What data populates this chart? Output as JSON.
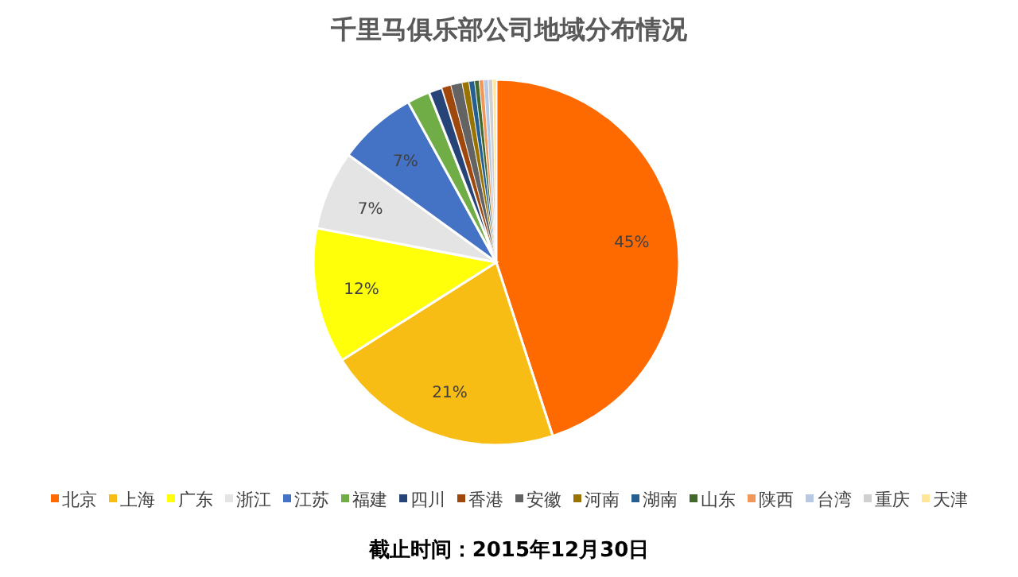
{
  "chart_data": {
    "type": "pie",
    "title": "千里马俱乐部公司地域分布情况",
    "categories": [
      "北京",
      "上海",
      "广东",
      "浙江",
      "江苏",
      "福建",
      "四川",
      "香港",
      "安徽",
      "河南",
      "湖南",
      "山东",
      "陕西",
      "台湾",
      "重庆",
      "天津"
    ],
    "values": [
      45,
      21,
      12,
      7,
      7,
      2,
      1.2,
      0.8,
      1,
      0.6,
      0.5,
      0.4,
      0.4,
      0.4,
      0.4,
      0.3
    ],
    "colors": [
      "#fe6a00",
      "#f8bd14",
      "#ffff0a",
      "#e4e4e4",
      "#4472c4",
      "#70ad47",
      "#264478",
      "#9e480e",
      "#636363",
      "#997300",
      "#255e91",
      "#43682b",
      "#f1975a",
      "#b7c9e2",
      "#d0d0d0",
      "#ffe699"
    ],
    "value_labels": [
      "45%",
      "21%",
      "12%",
      "7%",
      "7%",
      null,
      null,
      null,
      null,
      null,
      null,
      null,
      null,
      null,
      null,
      null
    ],
    "legend": "bottom",
    "annotations": [
      "截止时间：2015年12月30日"
    ]
  }
}
